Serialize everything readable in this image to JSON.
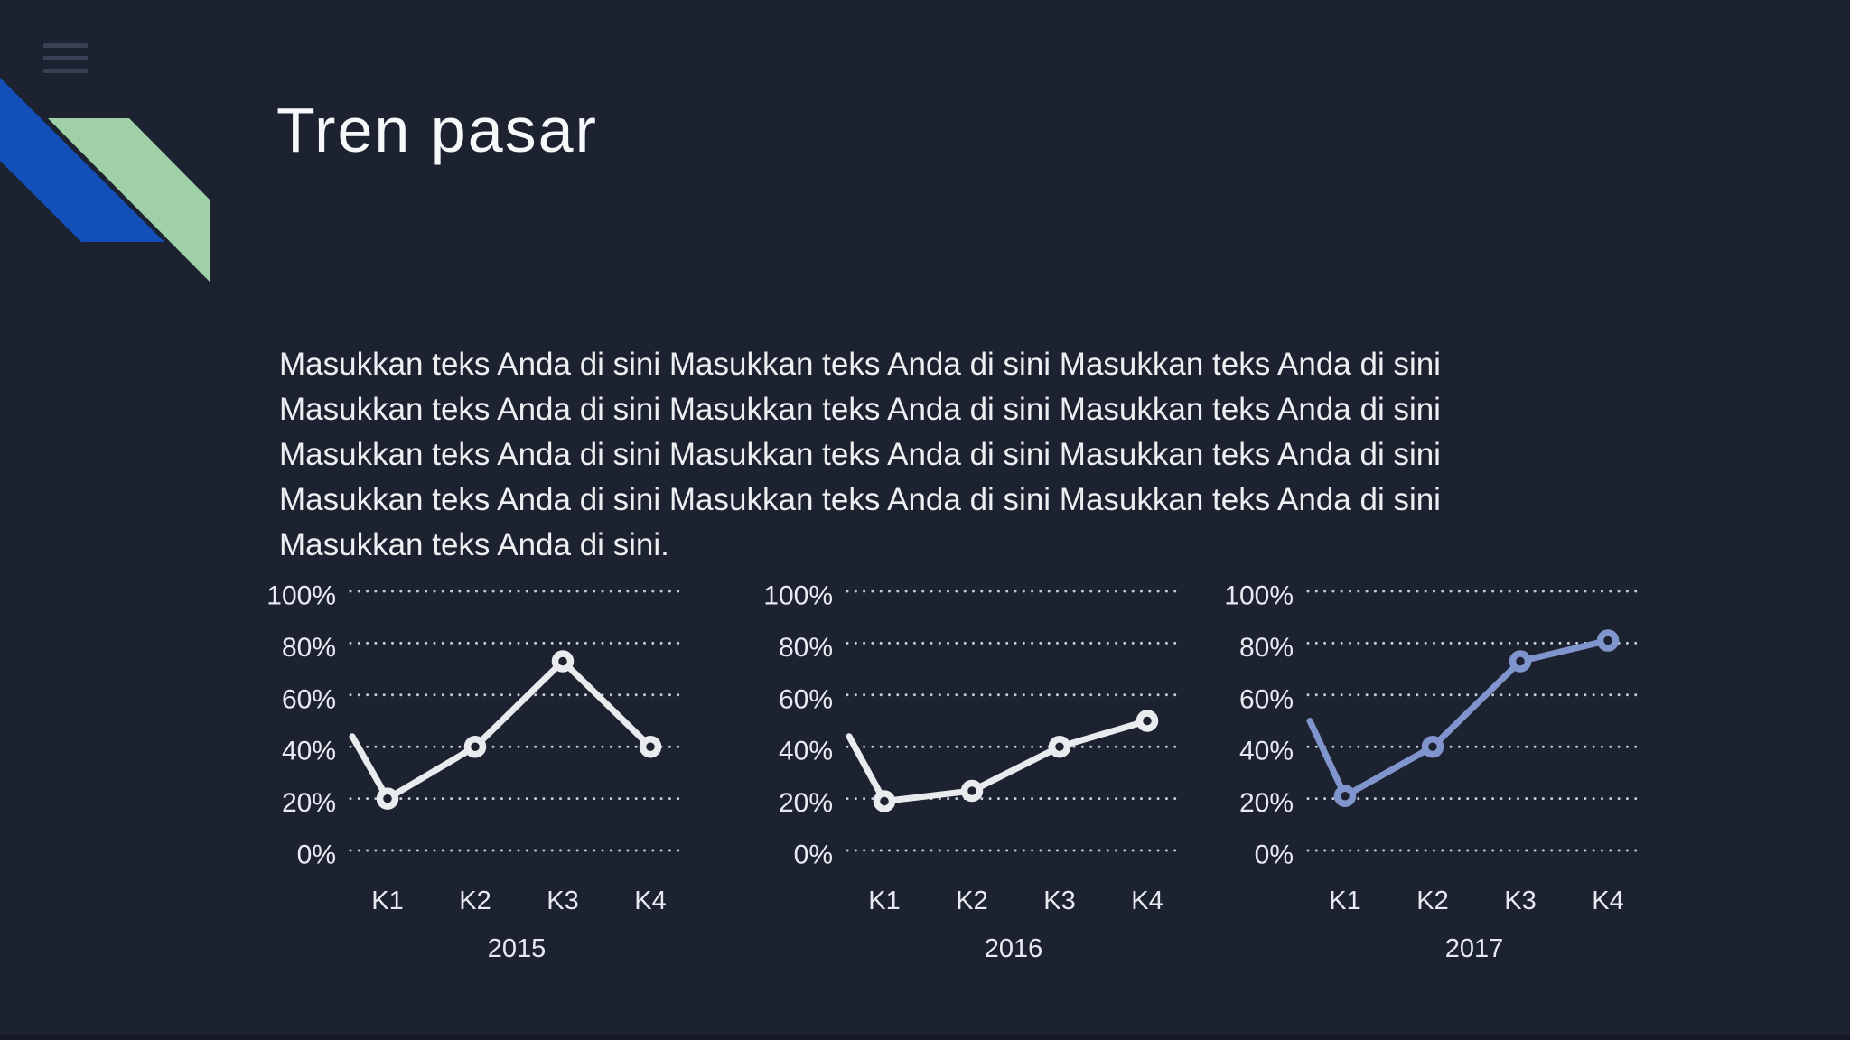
{
  "slide": {
    "title": "Tren pasar",
    "colors": {
      "background": "#1d2230",
      "bottom_bar": "#141823",
      "hamburger": "#3a4154",
      "accent_blue": "#124fb8",
      "accent_green": "#a0d0a8",
      "title_text": "#f6f8fa",
      "body_text": "#edeff3",
      "axis_label": "#e7eaf1",
      "grid_dot": "#c6ccda"
    },
    "icons": {
      "menu": "hamburger-icon"
    }
  },
  "body_text": {
    "lines": [
      "Masukkan teks Anda di sini Masukkan teks Anda di sini Masukkan teks Anda di sini",
      "Masukkan teks Anda di sini Masukkan teks Anda di sini Masukkan teks Anda di sini",
      "Masukkan teks Anda di sini Masukkan teks Anda di sini Masukkan teks Anda di sini",
      "Masukkan teks Anda di sini Masukkan teks Anda di sini Masukkan teks Anda di sini",
      "Masukkan teks Anda di sini."
    ]
  },
  "chart_data": [
    {
      "type": "line",
      "year_label": "2015",
      "categories": [
        "K1",
        "K2",
        "K3",
        "K4"
      ],
      "values": [
        20,
        40,
        73,
        40
      ],
      "leadin_value": 44,
      "y_tick_labels": [
        "100%",
        "80%",
        "60%",
        "40%",
        "20%",
        "0%"
      ],
      "ylim": [
        0,
        100
      ],
      "grid": "dotted-horizontal",
      "legend": "none",
      "line_color": "#e9ebee",
      "marker": "donut-circle"
    },
    {
      "type": "line",
      "year_label": "2016",
      "categories": [
        "K1",
        "K2",
        "K3",
        "K4"
      ],
      "values": [
        19,
        23,
        40,
        50
      ],
      "leadin_value": 44,
      "y_tick_labels": [
        "100%",
        "80%",
        "60%",
        "40%",
        "20%",
        "0%"
      ],
      "ylim": [
        0,
        100
      ],
      "grid": "dotted-horizontal",
      "legend": "none",
      "line_color": "#e9ebee",
      "marker": "donut-circle"
    },
    {
      "type": "line",
      "year_label": "2017",
      "categories": [
        "K1",
        "K2",
        "K3",
        "K4"
      ],
      "values": [
        21,
        40,
        73,
        81
      ],
      "leadin_value": 50,
      "y_tick_labels": [
        "100%",
        "80%",
        "60%",
        "40%",
        "20%",
        "0%"
      ],
      "ylim": [
        0,
        100
      ],
      "grid": "dotted-horizontal",
      "legend": "none",
      "line_color": "#8094cd",
      "marker": "donut-circle"
    }
  ]
}
